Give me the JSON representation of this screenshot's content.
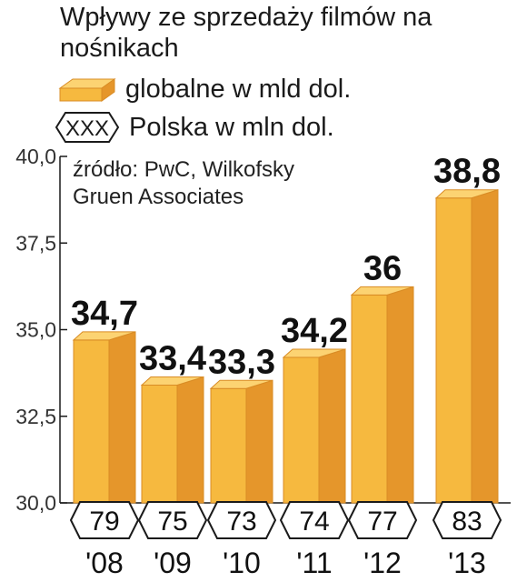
{
  "chart_data": {
    "type": "bar",
    "title": "Wpływy ze sprzedaży filmów na nośnikach",
    "source": "źródło: PwC, Wilkofsky Gruen Associates",
    "categories": [
      "'08",
      "'09",
      "'10",
      "'11",
      "'12",
      "'13"
    ],
    "series": [
      {
        "name": "globalne w mld dol.",
        "values": [
          34.7,
          33.4,
          33.3,
          34.2,
          36,
          38.8
        ],
        "value_labels": [
          "34,7",
          "33,4",
          "33,3",
          "34,2",
          "36",
          "38,8"
        ]
      },
      {
        "name": "Polska w mln dol.",
        "values": [
          79,
          75,
          73,
          74,
          77,
          83
        ]
      }
    ],
    "legend_marker_text": "XXX",
    "yticks": [
      "30,0",
      "32,5",
      "35,0",
      "37,5",
      "40,0"
    ],
    "ylim": [
      30,
      40
    ],
    "grid": false,
    "legend": "top-left",
    "colors": {
      "bar_front": "#f6b93f",
      "bar_side": "#e5962b",
      "bar_top": "#fcd372",
      "axis": "#1a1a1a"
    }
  }
}
